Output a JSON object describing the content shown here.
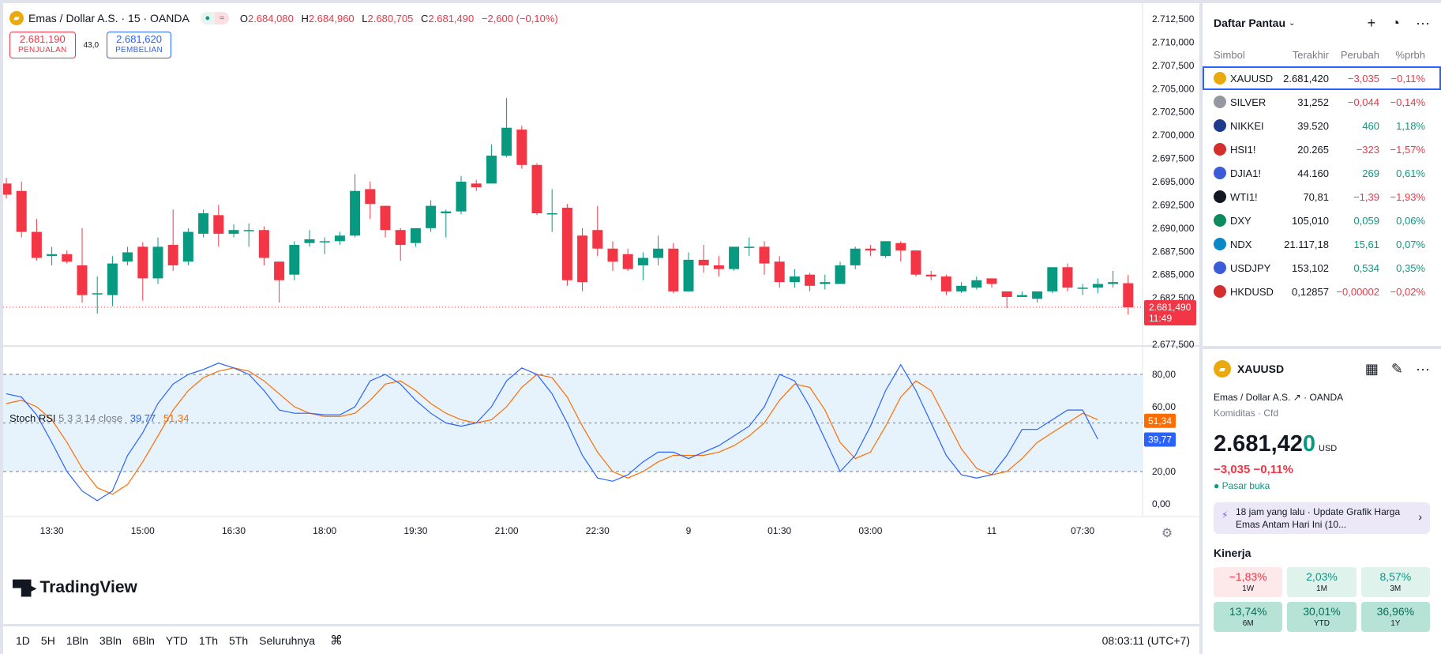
{
  "legend": {
    "title": "Emas / Dollar A.S. · 15 · OANDA",
    "ohlc": [
      {
        "k": "O",
        "v": "2.684,080"
      },
      {
        "k": "H",
        "v": "2.684,960"
      },
      {
        "k": "L",
        "v": "2.680,705"
      },
      {
        "k": "C",
        "v": "2.681,490"
      }
    ],
    "change": "−2,600 (−0,10%)"
  },
  "trade": {
    "sell_price": "2.681,190",
    "sell_label": "PENJUALAN",
    "spread": "43,0",
    "buy_price": "2.681,620",
    "buy_label": "PEMBELIAN"
  },
  "price_axis": {
    "labels": [
      "2.712,500",
      "2.710,000",
      "2.707,500",
      "2.705,000",
      "2.702,500",
      "2.700,000",
      "2.697,500",
      "2.695,000",
      "2.692,500",
      "2.690,000",
      "2.687,500",
      "2.685,000",
      "2.682,500",
      "2.680,000",
      "2.677,500"
    ],
    "last_price": "2.681,490",
    "countdown": "11:49"
  },
  "candles": [
    [
      2694.8,
      2693.6,
      2693.2,
      2695.4
    ],
    [
      2694.0,
      2689.6,
      2689.0,
      2695.0
    ],
    [
      2689.6,
      2686.8,
      2686.5,
      2691.0
    ],
    [
      2687.0,
      2687.2,
      2686.0,
      2688.0
    ],
    [
      2687.2,
      2686.4,
      2686.2,
      2687.6
    ],
    [
      2686.0,
      2682.8,
      2682.0,
      2690.0
    ],
    [
      2683.0,
      2683.0,
      2680.8,
      2684.8
    ],
    [
      2682.8,
      2686.2,
      2681.6,
      2687.0
    ],
    [
      2686.4,
      2687.4,
      2686.0,
      2688.0
    ],
    [
      2688.0,
      2684.6,
      2682.2,
      2688.5
    ],
    [
      2684.6,
      2688.0,
      2684.0,
      2689.0
    ],
    [
      2688.2,
      2686.0,
      2685.4,
      2692.0
    ],
    [
      2686.4,
      2689.6,
      2686.0,
      2690.0
    ],
    [
      2689.4,
      2691.6,
      2689.0,
      2692.0
    ],
    [
      2691.4,
      2689.4,
      2688.0,
      2692.5
    ],
    [
      2689.4,
      2689.8,
      2689.0,
      2690.4
    ],
    [
      2689.8,
      2689.8,
      2688.0,
      2690.5
    ],
    [
      2689.8,
      2686.8,
      2686.0,
      2690.2
    ],
    [
      2686.4,
      2684.4,
      2682.0,
      2686.4
    ],
    [
      2685.0,
      2688.2,
      2684.4,
      2688.6
    ],
    [
      2688.4,
      2688.8,
      2688.0,
      2689.8
    ],
    [
      2688.6,
      2688.6,
      2687.2,
      2689.0
    ],
    [
      2688.6,
      2689.2,
      2688.2,
      2689.6
    ],
    [
      2689.2,
      2694.0,
      2689.0,
      2695.8
    ],
    [
      2694.2,
      2692.6,
      2691.0,
      2695.0
    ],
    [
      2692.4,
      2689.8,
      2689.0,
      2692.4
    ],
    [
      2689.8,
      2688.2,
      2686.5,
      2690.0
    ],
    [
      2688.4,
      2690.0,
      2688.0,
      2690.0
    ],
    [
      2690.0,
      2692.4,
      2689.6,
      2693.0
    ],
    [
      2691.6,
      2691.8,
      2689.0,
      2692.0
    ],
    [
      2691.8,
      2695.0,
      2691.5,
      2695.6
    ],
    [
      2694.8,
      2694.4,
      2694.0,
      2695.2
    ],
    [
      2694.8,
      2697.8,
      2694.8,
      2699.0
    ],
    [
      2697.8,
      2700.8,
      2697.6,
      2704.0
    ],
    [
      2700.6,
      2696.8,
      2696.4,
      2701.0
    ],
    [
      2696.8,
      2691.6,
      2691.4,
      2697.0
    ],
    [
      2691.6,
      2691.6,
      2689.6,
      2694.2
    ],
    [
      2692.2,
      2684.4,
      2683.8,
      2692.6
    ],
    [
      2689.2,
      2684.2,
      2683.2,
      2690.0
    ],
    [
      2689.8,
      2687.8,
      2687.0,
      2692.4
    ],
    [
      2687.8,
      2686.4,
      2685.4,
      2688.6
    ],
    [
      2687.2,
      2685.6,
      2685.4,
      2687.8
    ],
    [
      2686.0,
      2686.8,
      2684.4,
      2687.4
    ],
    [
      2686.8,
      2687.8,
      2686.0,
      2689.2
    ],
    [
      2687.8,
      2683.2,
      2683.0,
      2688.4
    ],
    [
      2683.2,
      2686.6,
      2683.2,
      2687.4
    ],
    [
      2686.6,
      2686.0,
      2685.2,
      2688.2
    ],
    [
      2686.0,
      2685.6,
      2684.8,
      2687.0
    ],
    [
      2685.6,
      2688.0,
      2685.4,
      2688.0
    ],
    [
      2688.0,
      2688.0,
      2687.0,
      2689.0
    ],
    [
      2688.0,
      2686.2,
      2685.0,
      2688.6
    ],
    [
      2686.4,
      2684.2,
      2683.6,
      2687.0
    ],
    [
      2684.2,
      2684.8,
      2683.6,
      2685.6
    ],
    [
      2685.0,
      2683.8,
      2683.2,
      2685.2
    ],
    [
      2684.0,
      2684.2,
      2683.4,
      2685.0
    ],
    [
      2684.0,
      2686.0,
      2684.0,
      2686.4
    ],
    [
      2686.0,
      2687.8,
      2685.6,
      2688.0
    ],
    [
      2687.8,
      2687.6,
      2687.0,
      2688.2
    ],
    [
      2687.0,
      2688.6,
      2686.8,
      2688.6
    ],
    [
      2688.4,
      2687.6,
      2686.4,
      2688.6
    ],
    [
      2687.6,
      2685.0,
      2684.8,
      2687.6
    ],
    [
      2685.0,
      2684.8,
      2684.4,
      2685.4
    ],
    [
      2684.8,
      2683.2,
      2682.8,
      2685.0
    ],
    [
      2683.2,
      2683.8,
      2683.0,
      2684.2
    ],
    [
      2683.6,
      2684.4,
      2683.4,
      2684.8
    ],
    [
      2684.6,
      2684.0,
      2683.6,
      2684.6
    ],
    [
      2683.2,
      2682.6,
      2681.4,
      2683.2
    ],
    [
      2682.6,
      2682.8,
      2682.6,
      2683.2
    ],
    [
      2682.4,
      2683.2,
      2682.0,
      2683.2
    ],
    [
      2683.2,
      2685.8,
      2683.0,
      2685.8
    ],
    [
      2685.8,
      2683.6,
      2683.2,
      2686.2
    ],
    [
      2683.6,
      2683.6,
      2682.8,
      2684.0
    ],
    [
      2683.6,
      2684.0,
      2683.0,
      2684.6
    ],
    [
      2684.0,
      2684.2,
      2683.6,
      2685.4
    ],
    [
      2684.08,
      2681.49,
      2680.705,
      2684.96
    ]
  ],
  "stoch": {
    "label": "Stoch RSI",
    "params": "5 3 3 14 close",
    "k_value": "39,77",
    "d_value": "51,34",
    "axis_labels": [
      "80,00",
      "60,00",
      "20,00",
      "0,00"
    ],
    "k": [
      68,
      66,
      55,
      38,
      20,
      8,
      2,
      8,
      30,
      44,
      62,
      74,
      80,
      83,
      87,
      84,
      80,
      70,
      58,
      56,
      56,
      55,
      55,
      60,
      76,
      80,
      74,
      64,
      56,
      50,
      48,
      50,
      60,
      76,
      84,
      80,
      68,
      50,
      30,
      16,
      14,
      18,
      26,
      32,
      32,
      28,
      32,
      36,
      42,
      48,
      60,
      80,
      76,
      60,
      40,
      20,
      30,
      48,
      70,
      86,
      70,
      50,
      30,
      18,
      16,
      18,
      30,
      46,
      46,
      52,
      58,
      58,
      40
    ],
    "d": [
      62,
      64,
      60,
      52,
      38,
      22,
      10,
      6,
      12,
      26,
      42,
      58,
      70,
      78,
      82,
      84,
      82,
      76,
      68,
      60,
      56,
      54,
      54,
      56,
      64,
      74,
      76,
      70,
      62,
      56,
      52,
      50,
      52,
      60,
      72,
      80,
      78,
      66,
      48,
      32,
      20,
      16,
      20,
      26,
      30,
      30,
      30,
      32,
      36,
      42,
      50,
      64,
      74,
      72,
      58,
      38,
      28,
      32,
      48,
      66,
      76,
      70,
      52,
      34,
      22,
      18,
      20,
      28,
      38,
      44,
      50,
      56,
      52
    ]
  },
  "time_axis": [
    {
      "label": "13:30",
      "i": 3
    },
    {
      "label": "15:00",
      "i": 9
    },
    {
      "label": "16:30",
      "i": 15
    },
    {
      "label": "18:00",
      "i": 21
    },
    {
      "label": "19:30",
      "i": 27
    },
    {
      "label": "21:00",
      "i": 33
    },
    {
      "label": "22:30",
      "i": 39
    },
    {
      "label": "9",
      "i": 45
    },
    {
      "label": "01:30",
      "i": 51
    },
    {
      "label": "03:00",
      "i": 57
    },
    {
      "label": "11",
      "i": 65
    },
    {
      "label": "07:30",
      "i": 71
    }
  ],
  "logo": "TradingView",
  "timeframes": [
    "1D",
    "5H",
    "1Bln",
    "3Bln",
    "6Bln",
    "YTD",
    "1Th",
    "5Th",
    "Seluruhnya"
  ],
  "clock": "08:03:11 (UTC+7)",
  "watchlist": {
    "title": "Daftar Pantau",
    "columns": [
      "Simbol",
      "Terakhir",
      "Perubah",
      "%prbh"
    ],
    "rows": [
      {
        "sym": "XAUUSD",
        "last": "2.681,420",
        "chg": "−3,035",
        "pct": "−0,11%",
        "dir": "dn",
        "color": "#e9a90f",
        "icon": "gold-bars-icon"
      },
      {
        "sym": "SILVER",
        "last": "31,252",
        "chg": "−0,044",
        "pct": "−0,14%",
        "dir": "dn",
        "color": "#9598a1",
        "icon": "silver-bars-icon"
      },
      {
        "sym": "NIKKEI",
        "last": "39.520",
        "chg": "460",
        "pct": "1,18%",
        "dir": "up",
        "color": "#1e3a8a",
        "icon": "nikkei-icon"
      },
      {
        "sym": "HSI1!",
        "last": "20.265",
        "chg": "−323",
        "pct": "−1,57%",
        "dir": "dn",
        "color": "#d32f2f",
        "icon": "hongkong-flag-icon"
      },
      {
        "sym": "DJIA1!",
        "last": "44.160",
        "chg": "269",
        "pct": "0,61%",
        "dir": "up",
        "color": "#3c5bd6",
        "icon": "us-flag-icon"
      },
      {
        "sym": "WTI1!",
        "last": "70,81",
        "chg": "−1,39",
        "pct": "−1,93%",
        "dir": "dn",
        "color": "#131722",
        "icon": "oil-drop-icon"
      },
      {
        "sym": "DXY",
        "last": "105,010",
        "chg": "0,059",
        "pct": "0,06%",
        "dir": "up",
        "color": "#0e8a5f",
        "icon": "dollar-icon"
      },
      {
        "sym": "NDX",
        "last": "21.117,18",
        "chg": "15,61",
        "pct": "0,07%",
        "dir": "up",
        "color": "#0b88c8",
        "icon": "nasdaq-icon"
      },
      {
        "sym": "USDJPY",
        "last": "153,102",
        "chg": "0,534",
        "pct": "0,35%",
        "dir": "up",
        "color": "#3c5bd6",
        "icon": "us-flag-icon"
      },
      {
        "sym": "HKDUSD",
        "last": "0,12857",
        "chg": "−0,00002",
        "pct": "−0,02%",
        "dir": "dn",
        "color": "#d32f2f",
        "icon": "hongkong-flag-icon"
      }
    ]
  },
  "details": {
    "symbol": "XAUUSD",
    "name": "Emas / Dollar A.S.",
    "exchange": "OANDA",
    "category": "Komiditas · Cfd",
    "price_main": "2.681,42",
    "price_last": "0",
    "currency": "USD",
    "change": "−3,035  −0,11%",
    "market": "Pasar buka",
    "news_time": "18 jam yang lalu",
    "news_text": "Update Grafik Harga Emas Antam Hari Ini (10...",
    "perf_title": "Kinerja",
    "perf": [
      {
        "v": "−1,83%",
        "p": "1W",
        "cls": "neg"
      },
      {
        "v": "2,03%",
        "p": "1M",
        "cls": "pos1"
      },
      {
        "v": "8,57%",
        "p": "3M",
        "cls": "pos1"
      },
      {
        "v": "13,74%",
        "p": "6M",
        "cls": "pos2"
      },
      {
        "v": "30,01%",
        "p": "YTD",
        "cls": "pos2"
      },
      {
        "v": "36,96%",
        "p": "1Y",
        "cls": "pos2"
      }
    ]
  }
}
